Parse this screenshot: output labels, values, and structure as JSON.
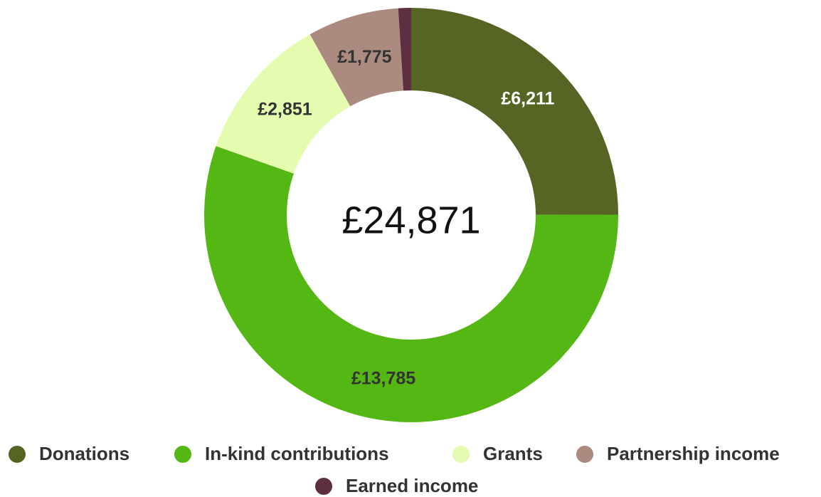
{
  "chart_data": {
    "type": "donut",
    "center_label": "£24,871",
    "categories": [
      "Donations",
      "In-kind contributions",
      "Grants",
      "Partnership income",
      "Earned income"
    ],
    "values": [
      6211,
      13785,
      2851,
      1775,
      249
    ],
    "value_labels": [
      "£6,211",
      "£13,785",
      "£2,851",
      "£1,775",
      null
    ],
    "colors": [
      "#566424",
      "#55b714",
      "#e5fbb0",
      "#ab8b80",
      "#5e2f40"
    ],
    "label_colors": [
      "#ffffff",
      "#333333",
      "#333333",
      "#333333",
      "#333333"
    ],
    "legend": "bottom"
  }
}
